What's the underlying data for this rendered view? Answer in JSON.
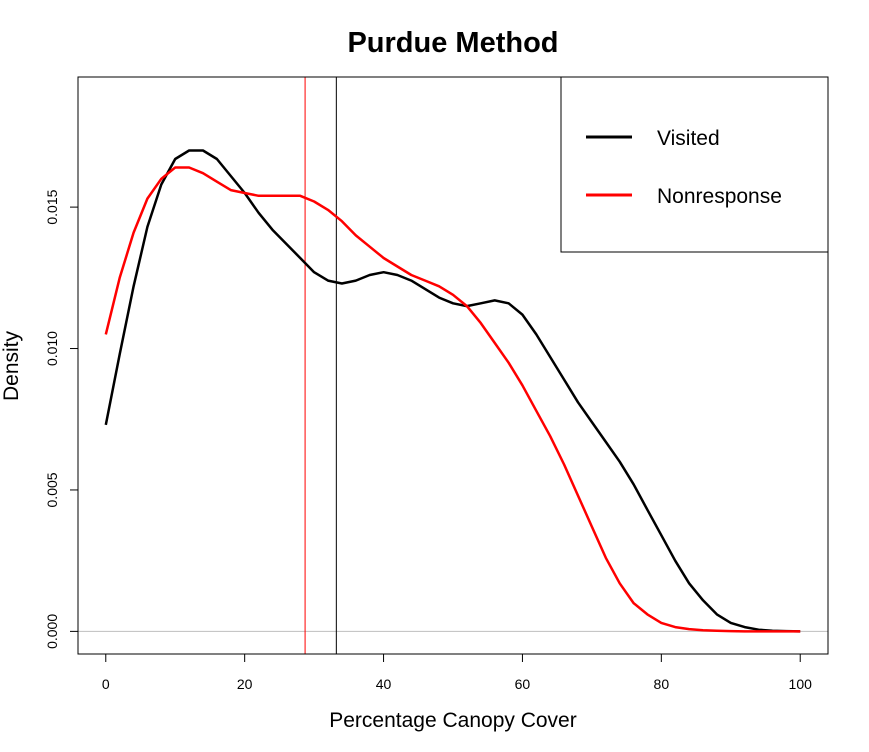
{
  "chart_data": {
    "type": "line",
    "title": "Purdue Method",
    "xlabel": "Percentage Canopy Cover",
    "ylabel": "Density",
    "xlim": [
      -4,
      104
    ],
    "ylim": [
      -0.0008,
      0.0196
    ],
    "xticks": [
      0,
      20,
      40,
      60,
      80,
      100
    ],
    "xtick_labels": [
      "0",
      "20",
      "40",
      "60",
      "80",
      "100"
    ],
    "yticks": [
      0.0,
      0.005,
      0.01,
      0.015
    ],
    "ytick_labels": [
      "0.000",
      "0.005",
      "0.010",
      "0.015"
    ],
    "grid": false,
    "legend_position": "top-right",
    "baseline": {
      "y": 0,
      "color": "#bebebe"
    },
    "vlines": [
      {
        "x": 28.7,
        "color": "#ff0000"
      },
      {
        "x": 33.2,
        "color": "#000000"
      }
    ],
    "series": [
      {
        "name": "Visited",
        "color": "#000000",
        "x": [
          0,
          2,
          4,
          6,
          8,
          10,
          12,
          14,
          16,
          18,
          20,
          22,
          24,
          26,
          28,
          30,
          32,
          34,
          36,
          38,
          40,
          42,
          44,
          46,
          48,
          50,
          52,
          54,
          56,
          58,
          60,
          62,
          64,
          66,
          68,
          70,
          72,
          74,
          76,
          78,
          80,
          82,
          84,
          86,
          88,
          90,
          92,
          94,
          96,
          98,
          100
        ],
        "y": [
          0.0073,
          0.0098,
          0.0122,
          0.0143,
          0.0158,
          0.0167,
          0.017,
          0.017,
          0.0167,
          0.0161,
          0.0155,
          0.0148,
          0.0142,
          0.0137,
          0.0132,
          0.0127,
          0.0124,
          0.0123,
          0.0124,
          0.0126,
          0.0127,
          0.0126,
          0.0124,
          0.0121,
          0.0118,
          0.0116,
          0.0115,
          0.0116,
          0.0117,
          0.0116,
          0.0112,
          0.0105,
          0.0097,
          0.0089,
          0.0081,
          0.0074,
          0.0067,
          0.006,
          0.0052,
          0.0043,
          0.0034,
          0.0025,
          0.0017,
          0.0011,
          0.0006,
          0.0003,
          0.00015,
          6e-05,
          2e-05,
          1e-05,
          0.0
        ]
      },
      {
        "name": "Nonresponse",
        "color": "#ff0000",
        "x": [
          0,
          2,
          4,
          6,
          8,
          10,
          12,
          14,
          16,
          18,
          20,
          22,
          24,
          26,
          28,
          30,
          32,
          34,
          36,
          38,
          40,
          42,
          44,
          46,
          48,
          50,
          52,
          54,
          56,
          58,
          60,
          62,
          64,
          66,
          68,
          70,
          72,
          74,
          76,
          78,
          80,
          82,
          84,
          86,
          88,
          90,
          92,
          94,
          96,
          98,
          100
        ],
        "y": [
          0.0105,
          0.0125,
          0.0141,
          0.0153,
          0.016,
          0.0164,
          0.0164,
          0.0162,
          0.0159,
          0.0156,
          0.0155,
          0.0154,
          0.0154,
          0.0154,
          0.0154,
          0.0152,
          0.0149,
          0.0145,
          0.014,
          0.0136,
          0.0132,
          0.0129,
          0.0126,
          0.0124,
          0.0122,
          0.0119,
          0.0115,
          0.0109,
          0.0102,
          0.0095,
          0.0087,
          0.0078,
          0.0069,
          0.0059,
          0.0048,
          0.0037,
          0.0026,
          0.0017,
          0.001,
          0.0006,
          0.0003,
          0.00015,
          8e-05,
          4e-05,
          2e-05,
          1e-05,
          0.0,
          0.0,
          0.0,
          0.0,
          0.0
        ]
      }
    ]
  }
}
